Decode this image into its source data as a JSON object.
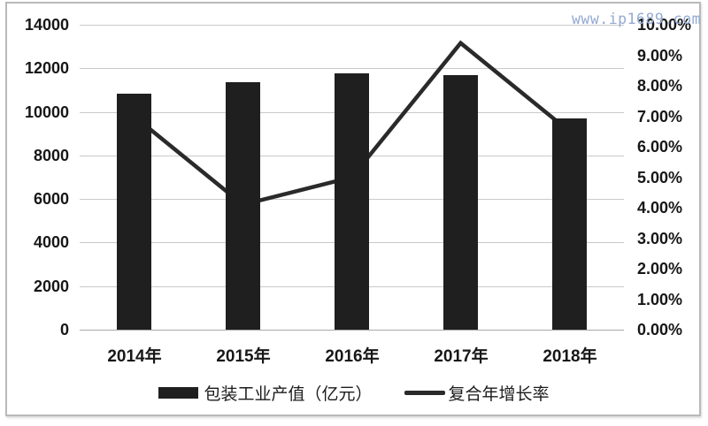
{
  "watermark": {
    "text": "www.ip1689.com",
    "color": "#94aad2"
  },
  "chart_data": {
    "type": "combo-bar-line",
    "title": "",
    "categories": [
      "2014年",
      "2015年",
      "2016年",
      "2017年",
      "2018年"
    ],
    "series": [
      {
        "name": "包装工业产值（亿元）",
        "type": "bar",
        "axis": "left",
        "color": "#1f1f1f",
        "values": [
          10850,
          11350,
          11750,
          11700,
          9700
        ]
      },
      {
        "name": "复合年增长率",
        "type": "line",
        "axis": "right",
        "color": "#2a2a2a",
        "unit": "%",
        "values": [
          7.0,
          4.1,
          5.0,
          9.4,
          6.5
        ]
      }
    ],
    "left_axis": {
      "min": 0,
      "max": 14000,
      "step": 2000,
      "tick_labels": [
        "0",
        "2000",
        "4000",
        "6000",
        "8000",
        "10000",
        "12000",
        "14000"
      ]
    },
    "right_axis": {
      "min": 0,
      "max": 10,
      "step": 1,
      "tick_labels": [
        "0.00%",
        "1.00%",
        "2.00%",
        "3.00%",
        "4.00%",
        "5.00%",
        "6.00%",
        "7.00%",
        "8.00%",
        "9.00%",
        "10.00%"
      ]
    },
    "grid": true,
    "legend_position": "bottom"
  }
}
